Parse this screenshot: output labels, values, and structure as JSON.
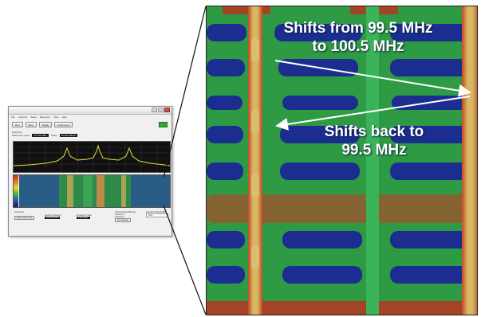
{
  "window": {
    "menu": [
      "File",
      "Controls",
      "Setup",
      "Extension",
      "View",
      "Help"
    ],
    "toolbar_buttons": [
      "Run",
      "Stop",
      "Single",
      "Continuous"
    ],
    "params": {
      "row_title": "Spectrum",
      "reference_level_label": "Reference Level",
      "reference_level_value": "-10.000 dBm",
      "scale_label": "Scale",
      "scale_value": "10.000 dB/div"
    },
    "bottom": {
      "horizontal_label": "Horizontal",
      "start_stop_button": "Start / Stop Freq",
      "center_freq_label": "Center Frequency",
      "center_freq_value": "100.000 MHz",
      "span_label": "Frequency Span",
      "span_value": "5.000 MHz",
      "channel_select_label": "Channel Select/Range",
      "channel_option_1": "Channel 1",
      "channel_option_2": "Channel 2",
      "channel_button": "Auto Range",
      "resolution_bw_label": "Resolution Bandwidth",
      "resolution_bw_value": "Auto"
    }
  },
  "annotations": {
    "top": [
      "Shifts from 99.5 MHz",
      "to 100.5 MHz"
    ],
    "bottom": [
      "Shifts back to",
      "99.5 MHz"
    ]
  },
  "colors": {
    "waterfall_background": "#2e9a44",
    "low_band": "#1b2e8f",
    "signal_band": "#c9a65a",
    "hot_band": "#c43a20",
    "arrow": "#ffffff"
  }
}
